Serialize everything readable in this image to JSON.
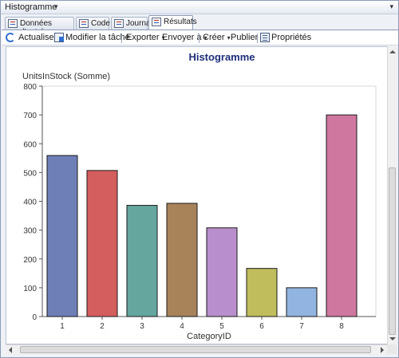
{
  "window": {
    "title": "Histogramme",
    "title_caret": "▾",
    "close_glyph": "▾"
  },
  "tabs": [
    {
      "label": "Données d'entrée",
      "icon": "input-data-icon"
    },
    {
      "label": "Code",
      "icon": "code-icon"
    },
    {
      "label": "Journal",
      "icon": "log-icon"
    },
    {
      "label": "Résultats",
      "icon": "results-icon",
      "active": true
    }
  ],
  "toolbar": {
    "refresh_label": "Actualiser",
    "edit_task_label": "Modifier la tâche",
    "export_label": "Exporter",
    "send_to_label": "Envoyer à",
    "create_label": "Créer",
    "publish_label": "Publier",
    "properties_label": "Propriétés",
    "caret": "▾"
  },
  "colors": {
    "title_text": "#1f2f7a",
    "axis": "#555555",
    "plot_border": "#d9d9d9"
  },
  "chart_data": {
    "type": "bar",
    "title": "Histogramme",
    "ylabel": "UnitsInStock (Somme)",
    "xlabel": "CategoryID",
    "categories": [
      "1",
      "2",
      "3",
      "4",
      "5",
      "6",
      "7",
      "8"
    ],
    "values": [
      559,
      507,
      386,
      393,
      308,
      167,
      100,
      700
    ],
    "ylim": [
      0,
      800
    ],
    "yticks": [
      0,
      100,
      200,
      300,
      400,
      500,
      600,
      700,
      800
    ],
    "bar_colors": [
      "#6e7fb8",
      "#d45d5d",
      "#65a69f",
      "#a8835a",
      "#b88fcc",
      "#bfbd5c",
      "#91b4e0",
      "#cf779e"
    ],
    "grid": false,
    "legend": "none"
  }
}
